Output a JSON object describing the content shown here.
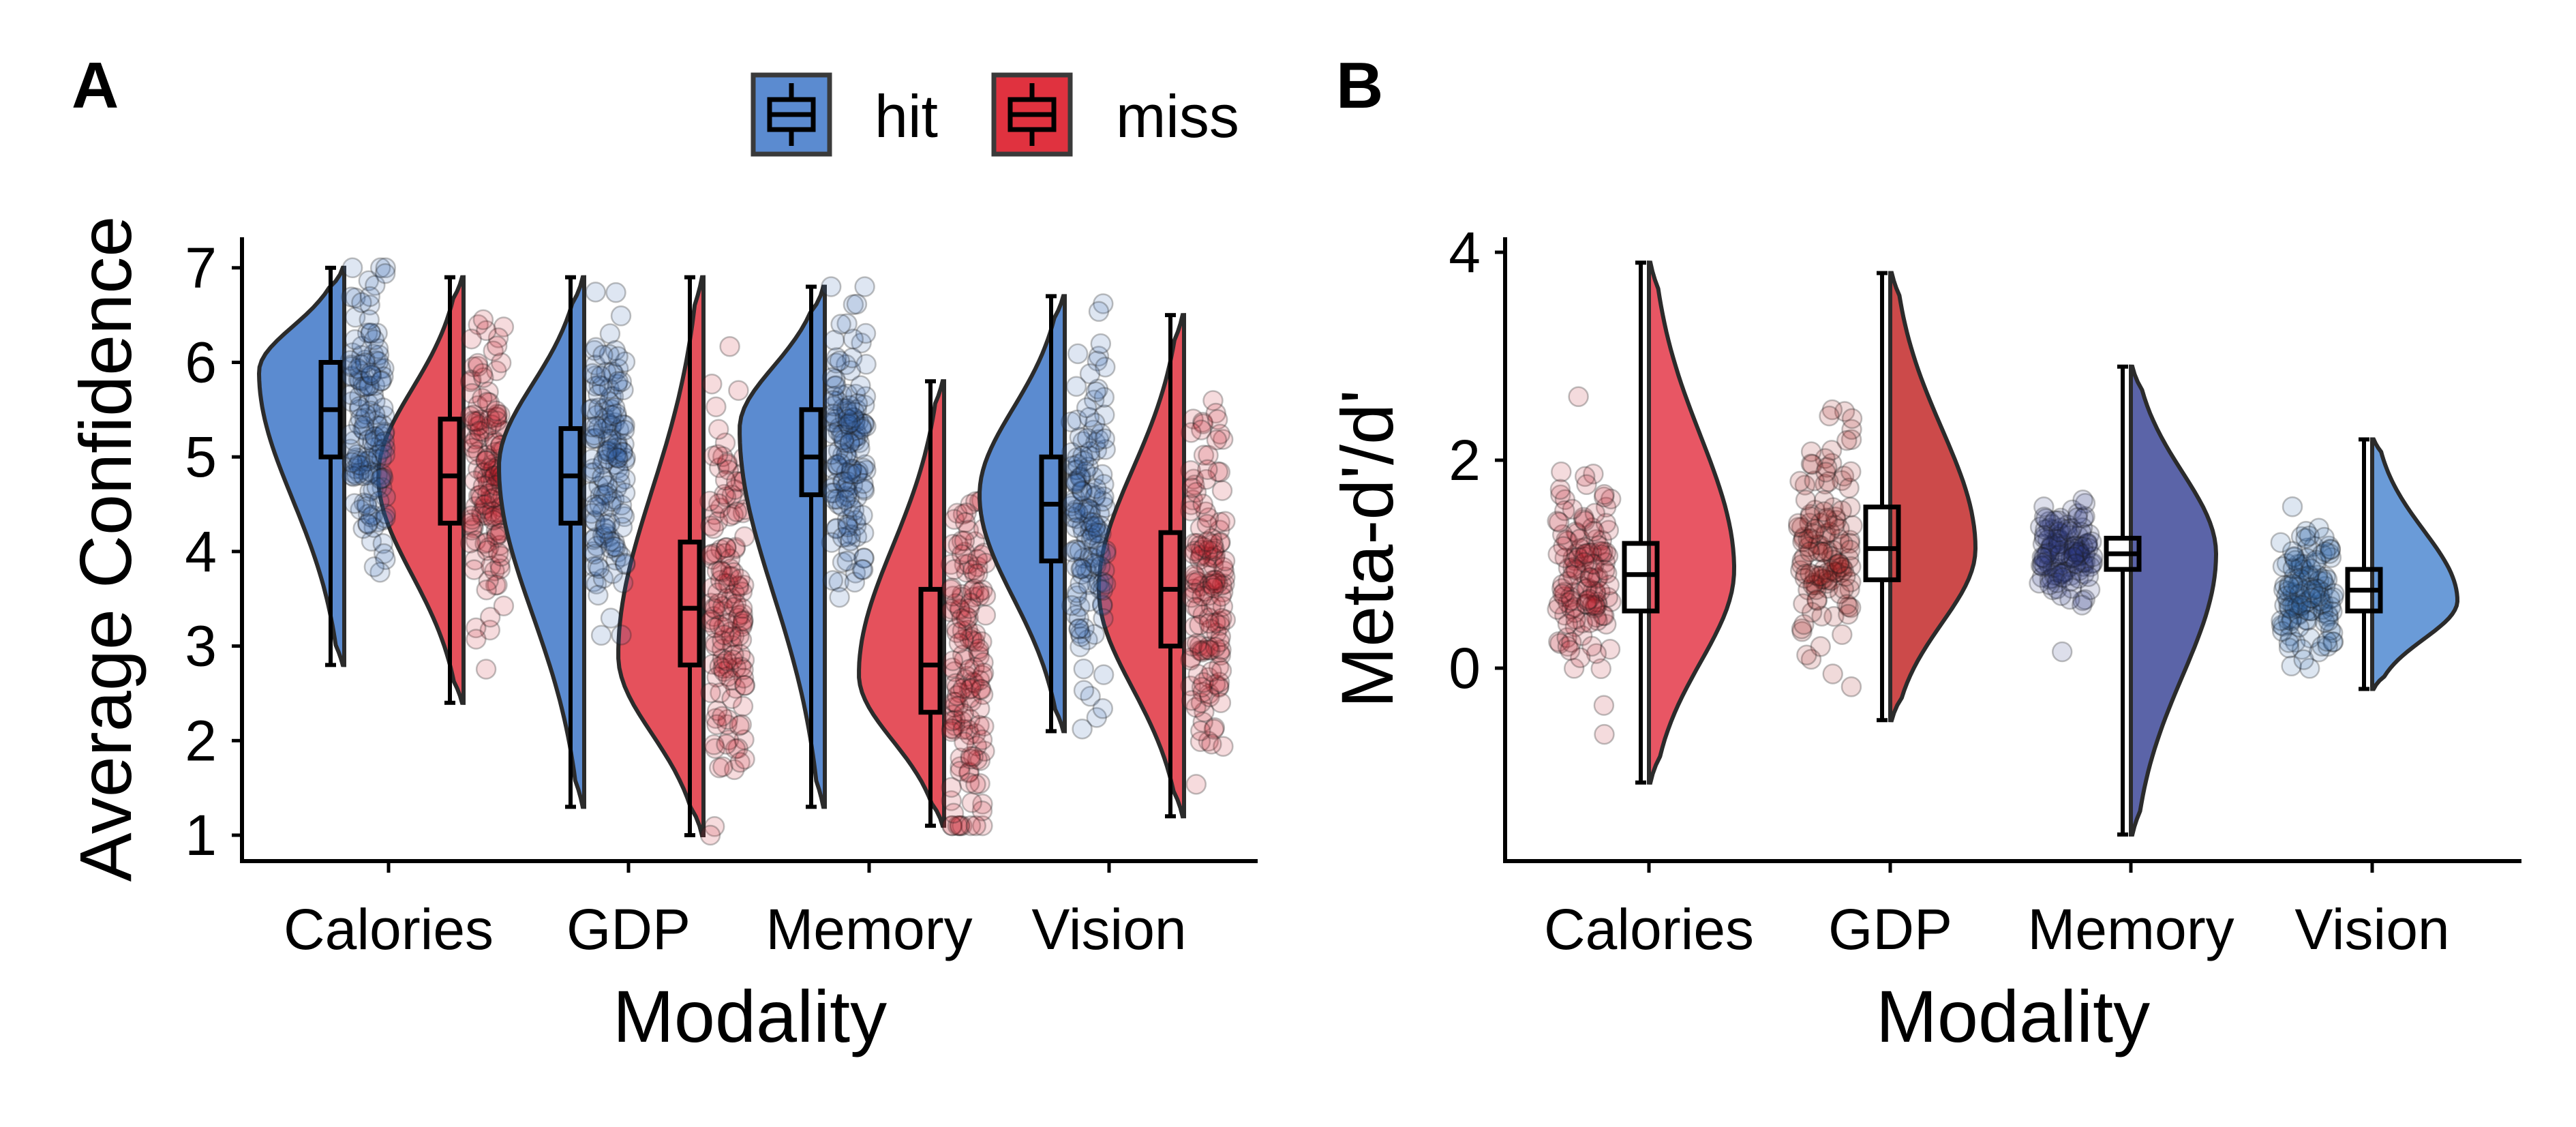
{
  "panel_a_label": "A",
  "panel_b_label": "B",
  "legend": [
    {
      "label": "hit",
      "color": "#5b8bd0"
    },
    {
      "label": "miss",
      "color": "#e0323f"
    }
  ],
  "chart_data": [
    {
      "type": "violin",
      "panel": "A",
      "xlabel": "Modality",
      "ylabel": "Average Confidence",
      "categories": [
        "Calories",
        "GDP",
        "Memory",
        "Vision"
      ],
      "yticks": [
        1,
        2,
        3,
        4,
        5,
        6,
        7
      ],
      "ylim": [
        0.7,
        7.3
      ],
      "grid": false,
      "legend_position": "top",
      "series": [
        {
          "name": "hit",
          "color": "#5b8bd0",
          "stats": [
            {
              "min": 2.8,
              "q1": 5.0,
              "median": 5.5,
              "q3": 6.0,
              "max": 7.0,
              "mode": 5.9
            },
            {
              "min": 1.3,
              "q1": 4.3,
              "median": 4.8,
              "q3": 5.3,
              "max": 6.9,
              "mode": 4.9
            },
            {
              "min": 1.3,
              "q1": 4.6,
              "median": 5.0,
              "q3": 5.5,
              "max": 6.8,
              "mode": 5.3
            },
            {
              "min": 2.1,
              "q1": 3.9,
              "median": 4.5,
              "q3": 5.0,
              "max": 6.7,
              "mode": 4.6
            }
          ]
        },
        {
          "name": "miss",
          "color": "#e0323f",
          "stats": [
            {
              "min": 2.4,
              "q1": 4.3,
              "median": 4.8,
              "q3": 5.4,
              "max": 6.9,
              "mode": 4.8
            },
            {
              "min": 1.0,
              "q1": 2.8,
              "median": 3.4,
              "q3": 4.1,
              "max": 6.9,
              "mode": 2.9
            },
            {
              "min": 1.1,
              "q1": 2.3,
              "median": 2.8,
              "q3": 3.6,
              "max": 5.8,
              "mode": 2.7
            },
            {
              "min": 1.2,
              "q1": 3.0,
              "median": 3.6,
              "q3": 4.2,
              "max": 6.5,
              "mode": 3.6
            }
          ]
        }
      ]
    },
    {
      "type": "violin",
      "panel": "B",
      "xlabel": "Modality",
      "ylabel": "Meta-d'/d'",
      "categories": [
        "Calories",
        "GDP",
        "Memory",
        "Vision"
      ],
      "yticks": [
        0,
        2,
        4
      ],
      "ylim": [
        -1.85,
        4.2
      ],
      "grid": false,
      "groups": [
        {
          "category": "Calories",
          "color": "#e85664",
          "point_color": "#b81e2c",
          "min": -1.1,
          "q1": 0.55,
          "median": 0.9,
          "q3": 1.2,
          "max": 3.9,
          "mode": 0.95
        },
        {
          "category": "GDP",
          "color": "#cc4a4a",
          "point_color": "#a01818",
          "min": -0.5,
          "q1": 0.85,
          "median": 1.15,
          "q3": 1.55,
          "max": 3.8,
          "mode": 1.15
        },
        {
          "category": "Memory",
          "color": "#5b64a8",
          "point_color": "#2a3580",
          "min": -1.6,
          "q1": 0.95,
          "median": 1.1,
          "q3": 1.25,
          "max": 2.9,
          "mode": 1.1
        },
        {
          "category": "Vision",
          "color": "#6a9bd8",
          "point_color": "#2d63a8",
          "min": -0.2,
          "q1": 0.55,
          "median": 0.75,
          "q3": 0.95,
          "max": 2.2,
          "mode": 0.65
        }
      ]
    }
  ]
}
